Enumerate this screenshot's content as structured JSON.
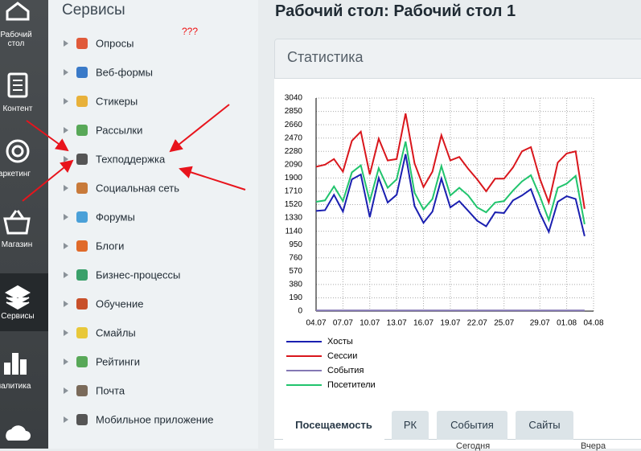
{
  "sidebar": {
    "items": [
      "Рабочий стол",
      "Контент",
      "аркетинг",
      "Магазин",
      "Сервисы",
      "налитика"
    ]
  },
  "services": {
    "title": "Сервисы",
    "note": "???",
    "items": [
      "Опросы",
      "Веб-формы",
      "Стикеры",
      "Рассылки",
      "Техподдержка",
      "Социальная сеть",
      "Форумы",
      "Блоги",
      "Бизнес-процессы",
      "Обучение",
      "Смайлы",
      "Рейтинги",
      "Почта",
      "Мобильное приложение"
    ]
  },
  "main": {
    "title": "Рабочий стол: Рабочий стол 1",
    "panel_title": "Статистика",
    "tabs": [
      "Посещаемость",
      "РК",
      "События",
      "Сайты"
    ],
    "table_headers": [
      "Сегодня",
      "Вчера"
    ]
  },
  "chart_data": {
    "type": "line",
    "grid": true,
    "categories": [
      "04.07",
      null,
      null,
      "07.07",
      null,
      null,
      "10.07",
      null,
      null,
      "13.07",
      null,
      null,
      "16.07",
      null,
      null,
      "19.07",
      null,
      null,
      "22.07",
      null,
      null,
      "25.07",
      null,
      null,
      null,
      "29.07",
      null,
      null,
      "01.08",
      null,
      null,
      "04.08"
    ],
    "ylim": [
      0,
      3040
    ],
    "yticks": [
      0,
      190,
      380,
      570,
      760,
      950,
      1140,
      1330,
      1520,
      1710,
      1900,
      2090,
      2280,
      2470,
      2660,
      2850,
      3040
    ],
    "series": [
      {
        "name": "Хосты",
        "color": "#1a1fb0",
        "values": [
          1430,
          1440,
          1660,
          1420,
          1880,
          1950,
          1340,
          1900,
          1550,
          1660,
          2240,
          1500,
          1260,
          1420,
          1890,
          1480,
          1570,
          1430,
          1290,
          1210,
          1410,
          1400,
          1580,
          1650,
          1740,
          1400,
          1130,
          1560,
          1640,
          1600,
          1070,
          null
        ]
      },
      {
        "name": "Сессии",
        "color": "#d9161c",
        "values": [
          2060,
          2090,
          2170,
          1990,
          2430,
          2560,
          1950,
          2460,
          2150,
          2170,
          2820,
          2110,
          1770,
          1990,
          2510,
          2150,
          2200,
          2030,
          1880,
          1710,
          1890,
          1890,
          2050,
          2280,
          2340,
          1890,
          1550,
          2120,
          2250,
          2280,
          1460,
          null
        ]
      },
      {
        "name": "События",
        "color": "#8478b4",
        "values": [
          10,
          10,
          10,
          10,
          10,
          10,
          10,
          10,
          10,
          10,
          10,
          10,
          10,
          10,
          10,
          10,
          10,
          10,
          10,
          10,
          10,
          10,
          10,
          10,
          10,
          10,
          10,
          10,
          10,
          10,
          10,
          null
        ]
      },
      {
        "name": "Посетители",
        "color": "#21c46d",
        "values": [
          1560,
          1580,
          1780,
          1570,
          1980,
          2080,
          1570,
          2040,
          1760,
          1880,
          2420,
          1690,
          1450,
          1600,
          2070,
          1650,
          1760,
          1650,
          1480,
          1410,
          1550,
          1570,
          1720,
          1850,
          1940,
          1640,
          1300,
          1760,
          1820,
          1930,
          1240,
          null
        ]
      }
    ]
  }
}
